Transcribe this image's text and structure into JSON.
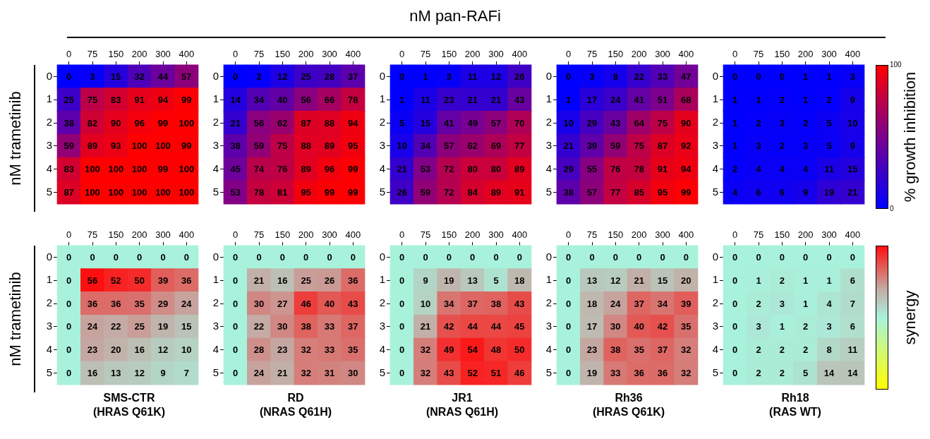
{
  "chart_data": [
    {
      "type": "heatmap",
      "ylabel": "nM trametinib",
      "data_labels": true,
      "categories": [
        "0",
        "75",
        "150",
        "200",
        "300",
        "400"
      ],
      "y_categories": [
        "0",
        "1",
        "2",
        "3",
        "4",
        "5"
      ],
      "cells": [
        [
          0,
          3,
          15,
          32,
          44,
          57
        ],
        [
          25,
          75,
          83,
          91,
          94,
          99
        ],
        [
          38,
          82,
          90,
          96,
          99,
          100
        ],
        [
          59,
          89,
          93,
          100,
          100,
          99
        ],
        [
          83,
          100,
          100,
          100,
          99,
          100
        ],
        [
          87,
          100,
          100,
          100,
          100,
          100
        ]
      ]
    },
    {
      "type": "heatmap",
      "data_labels": true,
      "categories": [
        "0",
        "75",
        "150",
        "200",
        "300",
        "400"
      ],
      "y_categories": [
        "0",
        "1",
        "2",
        "3",
        "4",
        "5"
      ],
      "cells": [
        [
          0,
          2,
          12,
          25,
          28,
          37
        ],
        [
          14,
          34,
          40,
          56,
          66,
          78
        ],
        [
          21,
          56,
          62,
          87,
          88,
          94
        ],
        [
          38,
          59,
          75,
          88,
          89,
          95
        ],
        [
          45,
          74,
          76,
          89,
          96,
          99
        ],
        [
          53,
          78,
          81,
          95,
          99,
          99
        ]
      ]
    },
    {
      "type": "heatmap",
      "title": "nM pan-RAFi",
      "data_labels": true,
      "categories": [
        "0",
        "75",
        "150",
        "200",
        "300",
        "400"
      ],
      "y_categories": [
        "0",
        "1",
        "2",
        "3",
        "4",
        "5"
      ],
      "cells": [
        [
          0,
          1,
          3,
          11,
          12,
          26
        ],
        [
          1,
          11,
          23,
          21,
          21,
          43
        ],
        [
          5,
          15,
          41,
          49,
          57,
          70
        ],
        [
          10,
          34,
          57,
          62,
          69,
          77
        ],
        [
          21,
          53,
          72,
          80,
          80,
          89
        ],
        [
          26,
          59,
          72,
          84,
          89,
          91
        ]
      ]
    },
    {
      "type": "heatmap",
      "data_labels": true,
      "categories": [
        "0",
        "75",
        "150",
        "200",
        "300",
        "400"
      ],
      "y_categories": [
        "0",
        "1",
        "2",
        "3",
        "4",
        "5"
      ],
      "cells": [
        [
          0,
          3,
          8,
          22,
          33,
          47
        ],
        [
          1,
          17,
          24,
          41,
          51,
          68
        ],
        [
          10,
          29,
          43,
          64,
          75,
          90
        ],
        [
          21,
          39,
          59,
          75,
          87,
          92
        ],
        [
          29,
          55,
          76,
          78,
          91,
          94
        ],
        [
          38,
          57,
          77,
          85,
          95,
          99
        ]
      ]
    },
    {
      "type": "heatmap",
      "data_labels": true,
      "clabel": "% growth inhibition",
      "clim": [
        0,
        100
      ],
      "cticks": [
        0,
        100
      ],
      "categories": [
        "0",
        "75",
        "150",
        "200",
        "300",
        "400"
      ],
      "y_categories": [
        "0",
        "1",
        "2",
        "3",
        "4",
        "5"
      ],
      "cells": [
        [
          0,
          0,
          0,
          1,
          1,
          3
        ],
        [
          1,
          1,
          2,
          1,
          2,
          9
        ],
        [
          1,
          2,
          3,
          2,
          5,
          10
        ],
        [
          1,
          3,
          2,
          3,
          5,
          9
        ],
        [
          2,
          4,
          4,
          4,
          11,
          15
        ],
        [
          4,
          6,
          6,
          9,
          19,
          21
        ]
      ]
    },
    {
      "type": "heatmap",
      "ylabel": "nM trametinib",
      "xlabel": "SMS-CTR\n(HRAS Q61K)",
      "data_labels": true,
      "categories": [
        "0",
        "75",
        "150",
        "200",
        "300",
        "400"
      ],
      "y_categories": [
        "0",
        "1",
        "2",
        "3",
        "4",
        "5"
      ],
      "cells": [
        [
          0,
          0,
          0,
          0,
          0,
          0
        ],
        [
          0,
          56,
          52,
          50,
          39,
          36
        ],
        [
          0,
          36,
          36,
          35,
          29,
          24
        ],
        [
          0,
          24,
          22,
          25,
          19,
          15
        ],
        [
          0,
          23,
          20,
          16,
          12,
          10
        ],
        [
          0,
          16,
          13,
          12,
          9,
          7
        ]
      ]
    },
    {
      "type": "heatmap",
      "xlabel": "RD\n(NRAS Q61H)",
      "data_labels": true,
      "categories": [
        "0",
        "75",
        "150",
        "200",
        "300",
        "400"
      ],
      "y_categories": [
        "0",
        "1",
        "2",
        "3",
        "4",
        "5"
      ],
      "cells": [
        [
          0,
          0,
          0,
          0,
          0,
          0
        ],
        [
          0,
          21,
          16,
          25,
          26,
          36
        ],
        [
          0,
          30,
          27,
          46,
          40,
          43
        ],
        [
          0,
          22,
          30,
          38,
          33,
          37
        ],
        [
          0,
          28,
          23,
          32,
          33,
          35
        ],
        [
          0,
          24,
          21,
          32,
          31,
          30
        ]
      ]
    },
    {
      "type": "heatmap",
      "xlabel": "JR1\n(NRAS Q61H)",
      "data_labels": true,
      "categories": [
        "0",
        "75",
        "150",
        "200",
        "300",
        "400"
      ],
      "y_categories": [
        "0",
        "1",
        "2",
        "3",
        "4",
        "5"
      ],
      "cells": [
        [
          0,
          0,
          0,
          0,
          0,
          0
        ],
        [
          0,
          9,
          19,
          13,
          5,
          18
        ],
        [
          0,
          10,
          34,
          37,
          38,
          43
        ],
        [
          0,
          21,
          42,
          44,
          44,
          45
        ],
        [
          0,
          32,
          49,
          54,
          48,
          50
        ],
        [
          0,
          32,
          43,
          52,
          51,
          46
        ]
      ]
    },
    {
      "type": "heatmap",
      "xlabel": "Rh36\n(HRAS Q61K)",
      "data_labels": true,
      "categories": [
        "0",
        "75",
        "150",
        "200",
        "300",
        "400"
      ],
      "y_categories": [
        "0",
        "1",
        "2",
        "3",
        "4",
        "5"
      ],
      "cells": [
        [
          0,
          0,
          0,
          0,
          0,
          0
        ],
        [
          0,
          13,
          12,
          21,
          15,
          20
        ],
        [
          0,
          18,
          24,
          37,
          34,
          39
        ],
        [
          0,
          17,
          30,
          40,
          42,
          35
        ],
        [
          0,
          23,
          38,
          35,
          37,
          32
        ],
        [
          0,
          19,
          33,
          36,
          36,
          32
        ]
      ]
    },
    {
      "type": "heatmap",
      "xlabel": "Rh18\n(RAS WT)",
      "clabel": "synergy",
      "data_labels": true,
      "categories": [
        "0",
        "75",
        "150",
        "200",
        "300",
        "400"
      ],
      "y_categories": [
        "0",
        "1",
        "2",
        "3",
        "4",
        "5"
      ],
      "cells": [
        [
          0,
          0,
          0,
          0,
          0,
          0
        ],
        [
          0,
          1,
          2,
          1,
          1,
          6
        ],
        [
          0,
          2,
          3,
          1,
          4,
          7
        ],
        [
          0,
          3,
          1,
          2,
          3,
          6
        ],
        [
          0,
          2,
          2,
          2,
          8,
          11
        ],
        [
          0,
          2,
          2,
          5,
          14,
          14
        ]
      ]
    }
  ]
}
